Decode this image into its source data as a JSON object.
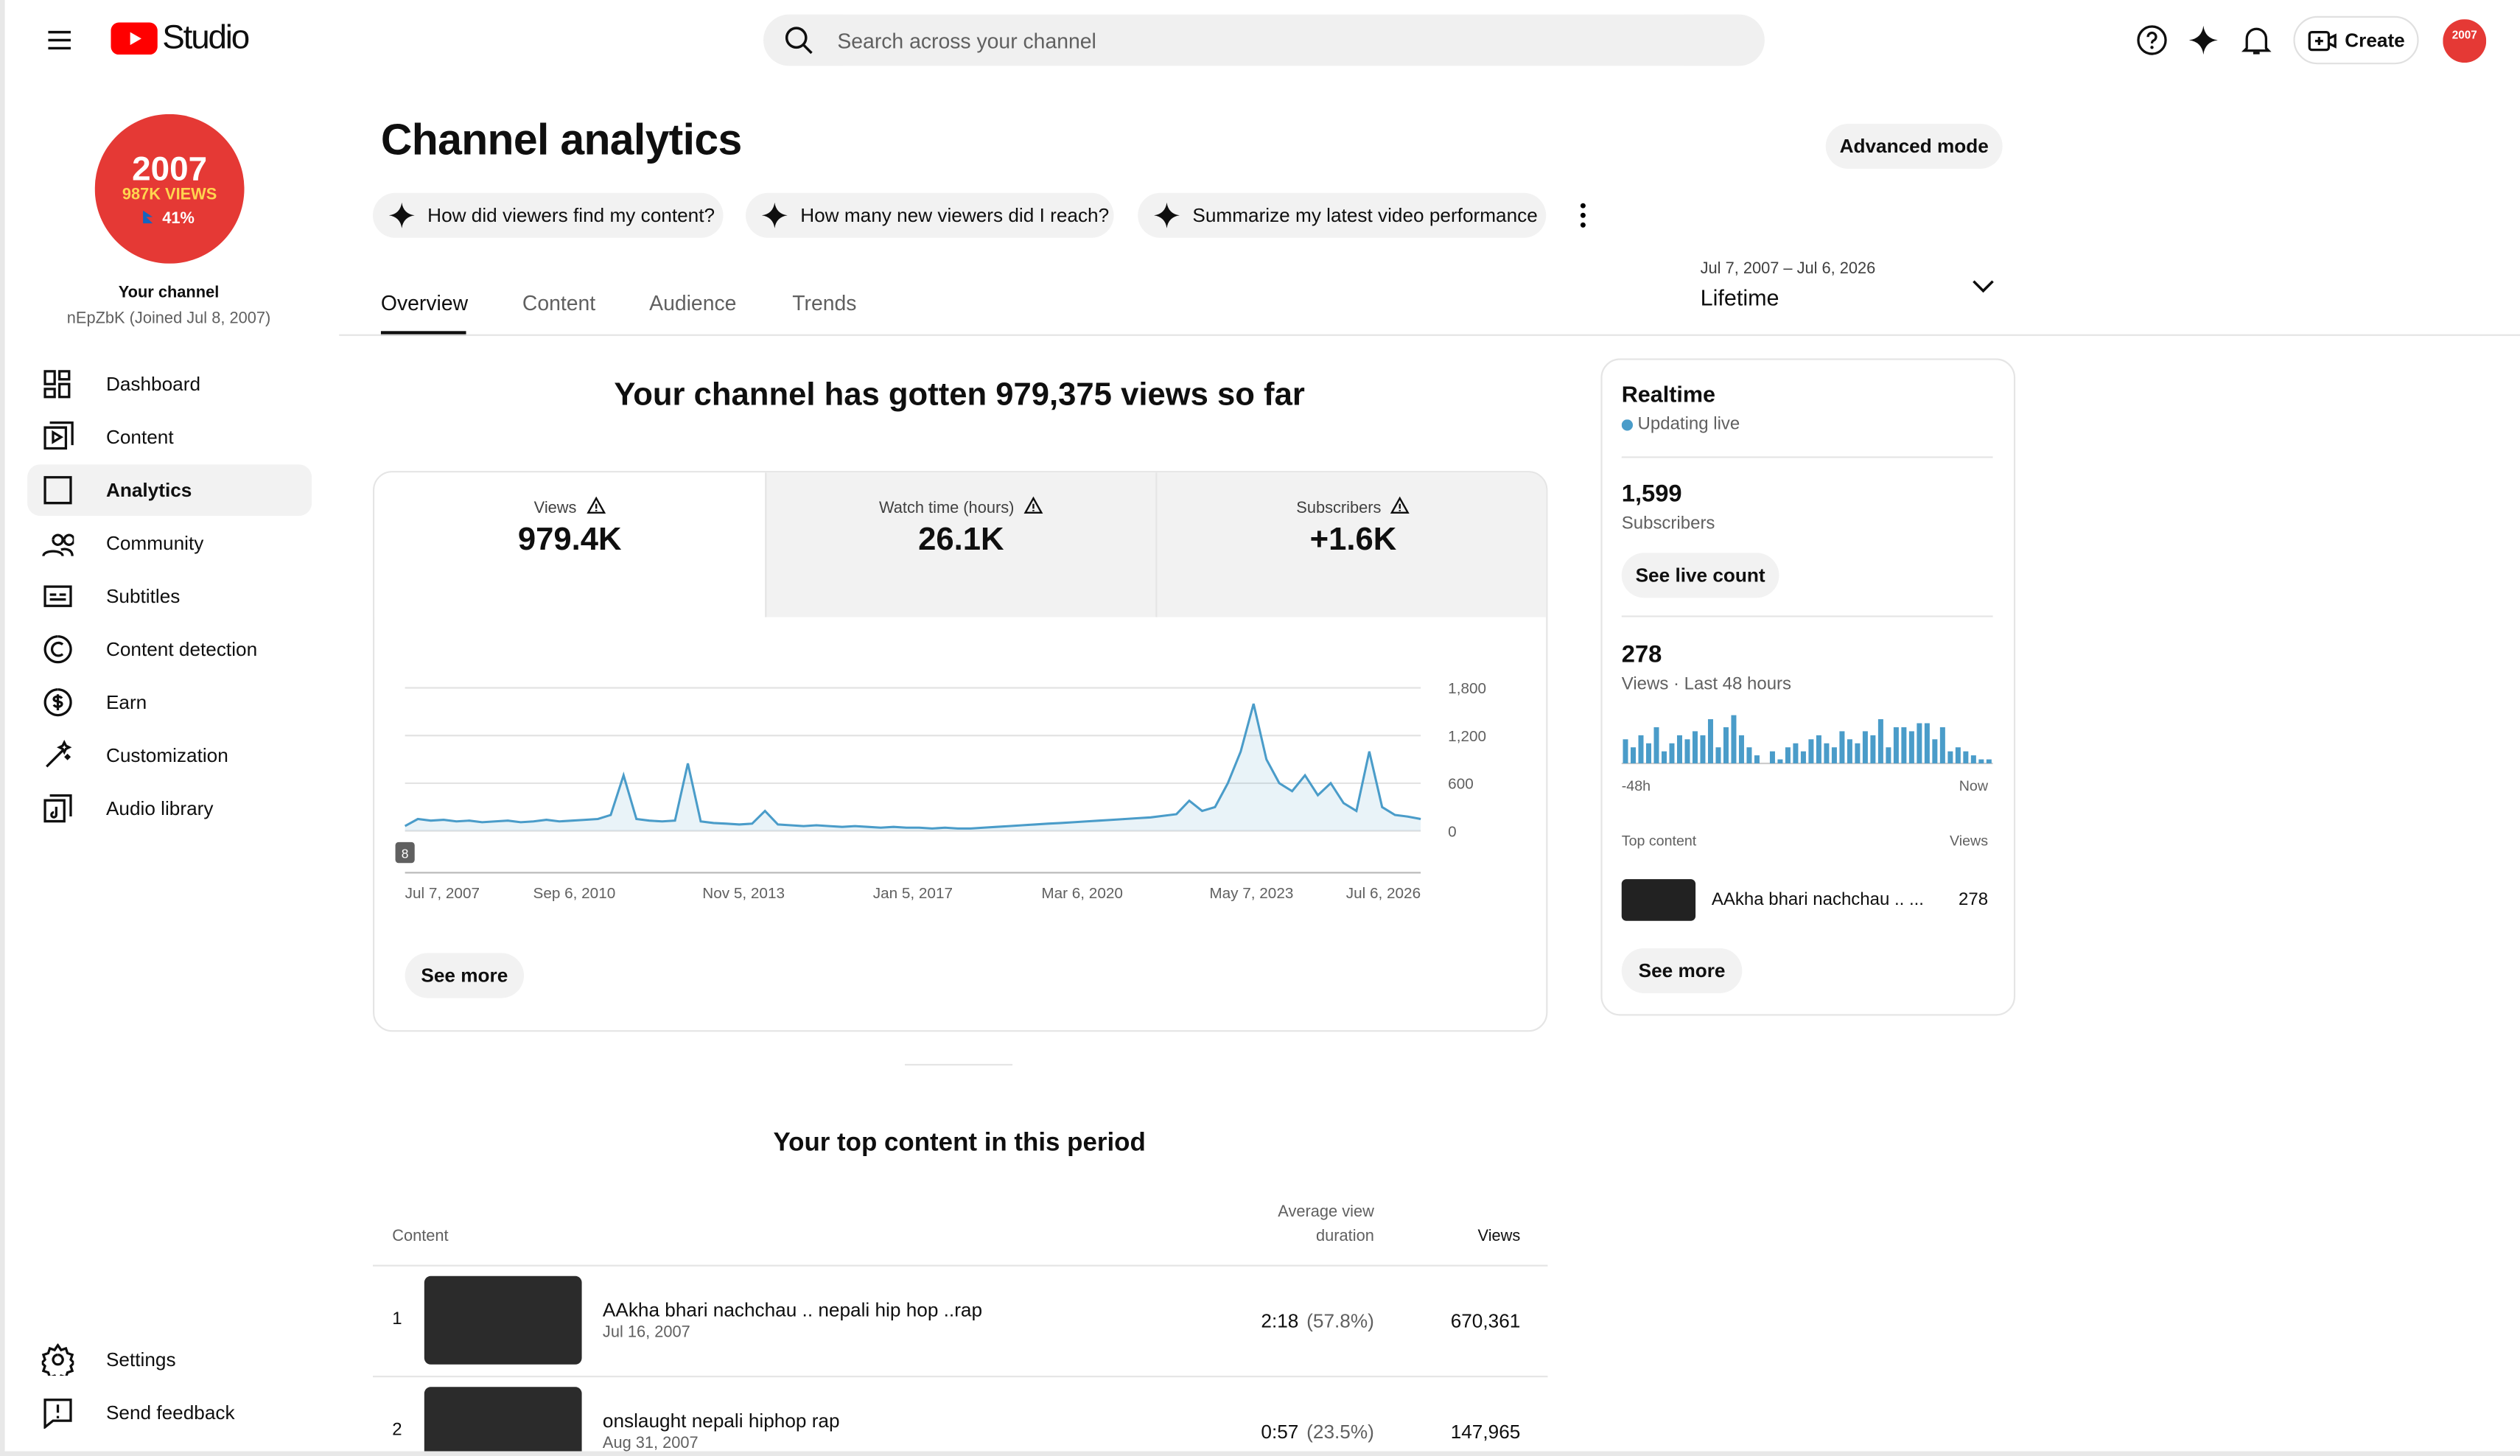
{
  "header": {
    "logo": "Studio",
    "search_placeholder": "Search across your channel",
    "create": "Create"
  },
  "channel": {
    "avatar_year": "2007",
    "avatar_views": "987K VIEWS",
    "avatar_pct": "41%",
    "label": "Your channel",
    "name": "nEpZbK (Joined Jul 8, 2007)"
  },
  "nav": [
    "Dashboard",
    "Content",
    "Analytics",
    "Community",
    "Subtitles",
    "Content detection",
    "Earn",
    "Customization",
    "Audio library"
  ],
  "nav_bottom": [
    "Settings",
    "Send feedback"
  ],
  "page": {
    "title": "Channel analytics",
    "advanced_mode": "Advanced mode",
    "prompts": [
      "How did viewers find my content?",
      "How many new viewers did I reach?",
      "Summarize my latest video performance"
    ],
    "date_range": "Jul 7, 2007 – Jul 6, 2026",
    "period": "Lifetime",
    "tabs": [
      "Overview",
      "Content",
      "Audience",
      "Trends"
    ]
  },
  "summary": {
    "headline": "Your channel has gotten 979,375 views so far",
    "metrics": [
      {
        "label": "Views",
        "value": "979.4K"
      },
      {
        "label": "Watch time (hours)",
        "value": "26.1K"
      },
      {
        "label": "Subscribers",
        "value": "+1.6K"
      }
    ],
    "see_more": "See more"
  },
  "views_chart": {
    "type": "line",
    "color": "#4a9cc9",
    "values": [
      60,
      150,
      130,
      140,
      120,
      130,
      110,
      120,
      130,
      110,
      120,
      140,
      120,
      130,
      140,
      150,
      200,
      700,
      150,
      130,
      120,
      130,
      850,
      120,
      100,
      90,
      80,
      90,
      250,
      80,
      70,
      60,
      70,
      60,
      50,
      60,
      50,
      40,
      50,
      40,
      40,
      30,
      40,
      30,
      30,
      40,
      50,
      60,
      70,
      80,
      90,
      100,
      110,
      120,
      130,
      140,
      150,
      160,
      170,
      190,
      210,
      380,
      250,
      300,
      600,
      1000,
      1600,
      900,
      600,
      500,
      700,
      450,
      600,
      350,
      250,
      1000,
      300,
      200,
      180,
      150
    ],
    "xticks": [
      "Jul 7, 2007",
      "Sep 6, 2010",
      "Nov 5, 2013",
      "Jan 5, 2017",
      "Mar 6, 2020",
      "May 7, 2023",
      "Jul 6, 2026"
    ],
    "ylim": [
      0,
      1800
    ],
    "yticks": [
      0,
      600,
      {
        "value": 1200,
        "label": "1,200"
      },
      {
        "value": 1800,
        "label": "1,800"
      }
    ],
    "grid": true,
    "marker": "8"
  },
  "realtime": {
    "title": "Realtime",
    "status": "Updating live",
    "subscribers": "1,599",
    "subscribers_label": "Subscribers",
    "see_live": "See live count",
    "views": "278",
    "views_label": "Views · Last 48 hours",
    "bars": {
      "type": "bar",
      "color": "#4a9cc9",
      "values": [
        6,
        4,
        7,
        5,
        9,
        3,
        5,
        7,
        6,
        8,
        7,
        11,
        4,
        9,
        12,
        7,
        4,
        2,
        0,
        3,
        1,
        4,
        5,
        3,
        6,
        7,
        5,
        4,
        8,
        6,
        5,
        8,
        7,
        11,
        4,
        9,
        9,
        8,
        10,
        10,
        6,
        9,
        3,
        4,
        3,
        2,
        1,
        1
      ],
      "x_start": "-48h",
      "x_end": "Now"
    },
    "top_content_label": "Top content",
    "views_col": "Views",
    "top_title": "AAkha bhari nachchau .. ...",
    "top_views": "278",
    "see_more": "See more"
  },
  "top_content": {
    "title": "Your top content in this period",
    "col_content": "Content",
    "col_avd_1": "Average view",
    "col_avd_2": "duration",
    "col_views": "Views",
    "rows": [
      {
        "rank": "1",
        "title": "AAkha bhari nachchau .. nepali hip hop ..rap",
        "date": "Jul 16, 2007",
        "duration": "2:18",
        "pct": "(57.8%)",
        "views": "670,361"
      },
      {
        "rank": "2",
        "title": "onslaught nepali hiphop rap",
        "date": "Aug 31, 2007",
        "duration": "0:57",
        "pct": "(23.5%)",
        "views": "147,965"
      }
    ]
  }
}
